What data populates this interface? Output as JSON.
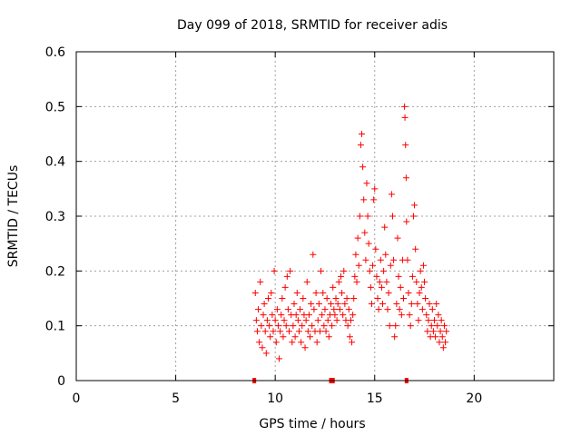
{
  "chart_data": {
    "type": "scatter",
    "title": "Day 099 of 2018, SRMTID for receiver adis",
    "xlabel": "GPS time / hours",
    "ylabel": "SRMTID / TECUs",
    "xlim": [
      0,
      24
    ],
    "ylim": [
      0,
      0.6
    ],
    "x_ticks": [
      0,
      5,
      10,
      15,
      20
    ],
    "x_tick_labels": [
      "0",
      "5",
      "10",
      "15",
      "20"
    ],
    "y_ticks": [
      0,
      0.1,
      0.2,
      0.3,
      0.4,
      0.5,
      0.6
    ],
    "y_tick_labels": [
      "0",
      "0.1",
      "0.2",
      "0.3",
      "0.4",
      "0.5",
      "0.6"
    ],
    "grid": true,
    "marker": "plus",
    "series_color": "#ff0000",
    "baseline_marks_x": [
      8.95,
      12.8,
      12.9,
      16.6
    ],
    "series": [
      {
        "name": "SRMTID",
        "points": [
          [
            9.0,
            0.16
          ],
          [
            9.05,
            0.11
          ],
          [
            9.1,
            0.09
          ],
          [
            9.15,
            0.13
          ],
          [
            9.2,
            0.07
          ],
          [
            9.25,
            0.18
          ],
          [
            9.3,
            0.1
          ],
          [
            9.35,
            0.06
          ],
          [
            9.4,
            0.12
          ],
          [
            9.45,
            0.14
          ],
          [
            9.5,
            0.09
          ],
          [
            9.55,
            0.05
          ],
          [
            9.6,
            0.11
          ],
          [
            9.65,
            0.15
          ],
          [
            9.7,
            0.1
          ],
          [
            9.75,
            0.08
          ],
          [
            9.8,
            0.16
          ],
          [
            9.85,
            0.12
          ],
          [
            9.9,
            0.09
          ],
          [
            9.95,
            0.2
          ],
          [
            10.0,
            0.11
          ],
          [
            10.05,
            0.07
          ],
          [
            10.1,
            0.13
          ],
          [
            10.15,
            0.1
          ],
          [
            10.2,
            0.04
          ],
          [
            10.25,
            0.09
          ],
          [
            10.3,
            0.12
          ],
          [
            10.35,
            0.15
          ],
          [
            10.4,
            0.08
          ],
          [
            10.45,
            0.11
          ],
          [
            10.5,
            0.17
          ],
          [
            10.55,
            0.1
          ],
          [
            10.6,
            0.19
          ],
          [
            10.65,
            0.13
          ],
          [
            10.7,
            0.09
          ],
          [
            10.75,
            0.2
          ],
          [
            10.8,
            0.12
          ],
          [
            10.85,
            0.07
          ],
          [
            10.9,
            0.1
          ],
          [
            10.95,
            0.14
          ],
          [
            11.0,
            0.08
          ],
          [
            11.05,
            0.12
          ],
          [
            11.1,
            0.16
          ],
          [
            11.15,
            0.11
          ],
          [
            11.2,
            0.09
          ],
          [
            11.25,
            0.13
          ],
          [
            11.3,
            0.07
          ],
          [
            11.35,
            0.1
          ],
          [
            11.4,
            0.15
          ],
          [
            11.45,
            0.12
          ],
          [
            11.5,
            0.06
          ],
          [
            11.55,
            0.11
          ],
          [
            11.6,
            0.18
          ],
          [
            11.65,
            0.09
          ],
          [
            11.7,
            0.12
          ],
          [
            11.75,
            0.08
          ],
          [
            11.8,
            0.14
          ],
          [
            11.85,
            0.1
          ],
          [
            11.9,
            0.23
          ],
          [
            11.95,
            0.13
          ],
          [
            12.0,
            0.09
          ],
          [
            12.05,
            0.16
          ],
          [
            12.1,
            0.07
          ],
          [
            12.15,
            0.11
          ],
          [
            12.2,
            0.14
          ],
          [
            12.25,
            0.09
          ],
          [
            12.3,
            0.2
          ],
          [
            12.35,
            0.12
          ],
          [
            12.4,
            0.16
          ],
          [
            12.45,
            0.1
          ],
          [
            12.5,
            0.13
          ],
          [
            12.55,
            0.09
          ],
          [
            12.6,
            0.15
          ],
          [
            12.65,
            0.11
          ],
          [
            12.7,
            0.08
          ],
          [
            12.75,
            0.12
          ],
          [
            12.8,
            0.14
          ],
          [
            12.85,
            0.1
          ],
          [
            12.9,
            0.17
          ],
          [
            12.95,
            0.13
          ],
          [
            13.0,
            0.12
          ],
          [
            13.05,
            0.15
          ],
          [
            13.1,
            0.11
          ],
          [
            13.15,
            0.14
          ],
          [
            13.2,
            0.18
          ],
          [
            13.25,
            0.13
          ],
          [
            13.3,
            0.19
          ],
          [
            13.35,
            0.16
          ],
          [
            13.4,
            0.12
          ],
          [
            13.45,
            0.2
          ],
          [
            13.5,
            0.14
          ],
          [
            13.55,
            0.11
          ],
          [
            13.6,
            0.15
          ],
          [
            13.65,
            0.1
          ],
          [
            13.7,
            0.13
          ],
          [
            13.75,
            0.08
          ],
          [
            13.8,
            0.11
          ],
          [
            13.85,
            0.07
          ],
          [
            13.9,
            0.12
          ],
          [
            13.95,
            0.15
          ],
          [
            14.0,
            0.19
          ],
          [
            14.05,
            0.23
          ],
          [
            14.1,
            0.18
          ],
          [
            14.15,
            0.26
          ],
          [
            14.2,
            0.21
          ],
          [
            14.25,
            0.3
          ],
          [
            14.3,
            0.43
          ],
          [
            14.35,
            0.45
          ],
          [
            14.4,
            0.39
          ],
          [
            14.45,
            0.33
          ],
          [
            14.5,
            0.27
          ],
          [
            14.55,
            0.22
          ],
          [
            14.6,
            0.36
          ],
          [
            14.65,
            0.3
          ],
          [
            14.7,
            0.25
          ],
          [
            14.75,
            0.2
          ],
          [
            14.8,
            0.17
          ],
          [
            14.85,
            0.14
          ],
          [
            14.9,
            0.21
          ],
          [
            14.95,
            0.33
          ],
          [
            15.0,
            0.35
          ],
          [
            15.05,
            0.24
          ],
          [
            15.1,
            0.19
          ],
          [
            15.15,
            0.15
          ],
          [
            15.2,
            0.13
          ],
          [
            15.25,
            0.18
          ],
          [
            15.3,
            0.22
          ],
          [
            15.35,
            0.17
          ],
          [
            15.4,
            0.14
          ],
          [
            15.45,
            0.2
          ],
          [
            15.5,
            0.28
          ],
          [
            15.55,
            0.23
          ],
          [
            15.6,
            0.18
          ],
          [
            15.65,
            0.13
          ],
          [
            15.7,
            0.16
          ],
          [
            15.75,
            0.1
          ],
          [
            15.8,
            0.21
          ],
          [
            15.85,
            0.34
          ],
          [
            15.9,
            0.3
          ],
          [
            15.95,
            0.22
          ],
          [
            16.0,
            0.08
          ],
          [
            16.05,
            0.1
          ],
          [
            16.1,
            0.14
          ],
          [
            16.15,
            0.26
          ],
          [
            16.2,
            0.19
          ],
          [
            16.25,
            0.13
          ],
          [
            16.3,
            0.17
          ],
          [
            16.35,
            0.12
          ],
          [
            16.4,
            0.22
          ],
          [
            16.45,
            0.15
          ],
          [
            16.5,
            0.5
          ],
          [
            16.52,
            0.48
          ],
          [
            16.55,
            0.43
          ],
          [
            16.58,
            0.37
          ],
          [
            16.6,
            0.29
          ],
          [
            16.65,
            0.22
          ],
          [
            16.7,
            0.16
          ],
          [
            16.75,
            0.12
          ],
          [
            16.8,
            0.1
          ],
          [
            16.85,
            0.14
          ],
          [
            16.9,
            0.19
          ],
          [
            16.95,
            0.3
          ],
          [
            17.0,
            0.32
          ],
          [
            17.05,
            0.24
          ],
          [
            17.1,
            0.18
          ],
          [
            17.15,
            0.14
          ],
          [
            17.2,
            0.11
          ],
          [
            17.25,
            0.16
          ],
          [
            17.3,
            0.2
          ],
          [
            17.35,
            0.17
          ],
          [
            17.4,
            0.13
          ],
          [
            17.45,
            0.21
          ],
          [
            17.5,
            0.18
          ],
          [
            17.55,
            0.15
          ],
          [
            17.6,
            0.12
          ],
          [
            17.65,
            0.09
          ],
          [
            17.7,
            0.11
          ],
          [
            17.75,
            0.14
          ],
          [
            17.8,
            0.08
          ],
          [
            17.85,
            0.1
          ],
          [
            17.9,
            0.13
          ],
          [
            17.95,
            0.09
          ],
          [
            18.0,
            0.11
          ],
          [
            18.05,
            0.08
          ],
          [
            18.1,
            0.14
          ],
          [
            18.15,
            0.1
          ],
          [
            18.2,
            0.12
          ],
          [
            18.25,
            0.07
          ],
          [
            18.3,
            0.09
          ],
          [
            18.35,
            0.11
          ],
          [
            18.4,
            0.08
          ],
          [
            18.45,
            0.06
          ],
          [
            18.5,
            0.1
          ],
          [
            18.55,
            0.07
          ],
          [
            18.6,
            0.09
          ]
        ]
      }
    ]
  }
}
